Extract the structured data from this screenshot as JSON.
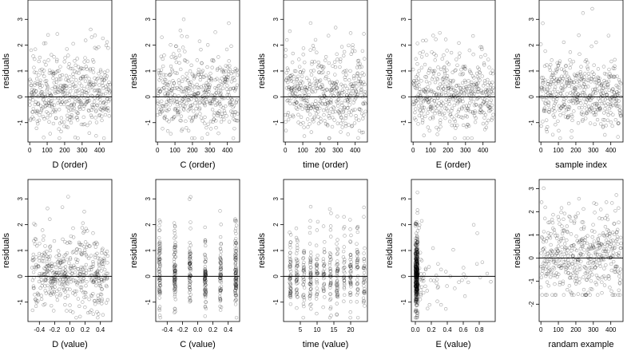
{
  "figure": {
    "background": "#ffffff",
    "point_color": "#000000"
  },
  "chart_data": [
    {
      "type": "scatter",
      "xlabel": "D (order)",
      "ylabel": "residuals",
      "xlim": [
        -10,
        470
      ],
      "ylim": [
        -1.75,
        3.75
      ],
      "xticks": [
        0,
        100,
        200,
        300,
        400
      ],
      "yticks": [
        -1,
        0,
        1,
        2,
        3
      ],
      "reference_line_y": 0,
      "gen": {
        "kind": "order",
        "seed": 11,
        "sd": 0.75
      }
    },
    {
      "type": "scatter",
      "xlabel": "C (order)",
      "ylabel": "residuals",
      "xlim": [
        -10,
        470
      ],
      "ylim": [
        -1.75,
        3.75
      ],
      "xticks": [
        0,
        100,
        200,
        300,
        400
      ],
      "yticks": [
        -1,
        0,
        1,
        2,
        3
      ],
      "reference_line_y": 0,
      "gen": {
        "kind": "order",
        "seed": 23,
        "sd": 0.75
      }
    },
    {
      "type": "scatter",
      "xlabel": "time (order)",
      "ylabel": "residuals",
      "xlim": [
        -10,
        470
      ],
      "ylim": [
        -1.75,
        3.75
      ],
      "xticks": [
        0,
        100,
        200,
        300,
        400
      ],
      "yticks": [
        -1,
        0,
        1,
        2,
        3
      ],
      "reference_line_y": 0,
      "gen": {
        "kind": "order",
        "seed": 37,
        "sd": 0.75
      }
    },
    {
      "type": "scatter",
      "xlabel": "E (order)",
      "ylabel": "residuals",
      "xlim": [
        -10,
        470
      ],
      "ylim": [
        -1.75,
        3.75
      ],
      "xticks": [
        0,
        100,
        200,
        300,
        400
      ],
      "yticks": [
        -1,
        0,
        1,
        2,
        3
      ],
      "reference_line_y": 0,
      "gen": {
        "kind": "order",
        "seed": 41,
        "sd": 0.75
      }
    },
    {
      "type": "scatter",
      "xlabel": "sample index",
      "ylabel": "residuals",
      "xlim": [
        -10,
        470
      ],
      "ylim": [
        -1.75,
        3.75
      ],
      "xticks": [
        0,
        100,
        200,
        300,
        400
      ],
      "yticks": [
        -1,
        0,
        1,
        2,
        3
      ],
      "reference_line_y": 0,
      "gen": {
        "kind": "order",
        "seed": 53,
        "sd": 0.75
      }
    },
    {
      "type": "scatter",
      "xlabel": "D (value)",
      "ylabel": "residuals",
      "xlim": [
        -0.55,
        0.55
      ],
      "ylim": [
        -1.75,
        3.75
      ],
      "xticks": [
        -0.4,
        -0.2,
        0,
        0.2,
        0.4
      ],
      "xtick_labels": [
        "-0.4",
        "-0.2",
        "0.0",
        "0.2",
        "0.4"
      ],
      "yticks": [
        -1,
        0,
        1,
        2,
        3
      ],
      "reference_line_y": 0,
      "gen": {
        "kind": "uniform",
        "seed": 61,
        "sd": 0.75,
        "range": [
          -0.5,
          0.5
        ]
      }
    },
    {
      "type": "scatter",
      "xlabel": "C (value)",
      "ylabel": "residuals",
      "xlim": [
        -0.55,
        0.55
      ],
      "ylim": [
        -1.75,
        3.75
      ],
      "xticks": [
        -0.4,
        -0.2,
        0,
        0.2,
        0.4
      ],
      "xtick_labels": [
        "-0.4",
        "-0.2",
        "0.0",
        "0.2",
        "0.4"
      ],
      "yticks": [
        -1,
        0,
        1,
        2,
        3
      ],
      "reference_line_y": 0,
      "gen": {
        "kind": "levels",
        "seed": 71,
        "sd": 0.75,
        "levels": [
          -0.5,
          -0.3,
          -0.1,
          0.1,
          0.3,
          0.5
        ]
      }
    },
    {
      "type": "scatter",
      "xlabel": "time (value)",
      "ylabel": "residuals",
      "xlim": [
        0,
        25
      ],
      "ylim": [
        -1.75,
        3.75
      ],
      "xticks": [
        5,
        10,
        15,
        20
      ],
      "yticks": [
        -1,
        0,
        1,
        2,
        3
      ],
      "reference_line_y": 0,
      "gen": {
        "kind": "levels",
        "seed": 83,
        "sd": 0.75,
        "levels": [
          2,
          4,
          6,
          8,
          10,
          12,
          14,
          16,
          18,
          20,
          22,
          24
        ]
      }
    },
    {
      "type": "scatter",
      "xlabel": "E (value)",
      "ylabel": "residuals",
      "xlim": [
        -0.05,
        1.0
      ],
      "ylim": [
        -1.75,
        3.75
      ],
      "xticks": [
        0,
        0.2,
        0.4,
        0.6,
        0.8
      ],
      "xtick_labels": [
        "0.0",
        "0.2",
        "0.4",
        "0.6",
        "0.8"
      ],
      "yticks": [
        -1,
        0,
        1,
        2,
        3
      ],
      "reference_line_y": 0,
      "gen": {
        "kind": "skewed",
        "seed": 97,
        "sd": 0.75
      }
    },
    {
      "type": "scatter",
      "xlabel": "randam example",
      "ylabel": "residuals",
      "xlim": [
        -10,
        470
      ],
      "ylim": [
        -2.75,
        3.4
      ],
      "xticks": [
        0,
        100,
        200,
        300,
        400
      ],
      "yticks": [
        -2,
        -1,
        0,
        1,
        2,
        3
      ],
      "reference_line_y": 0,
      "gen": {
        "kind": "order",
        "seed": 101,
        "sd": 1.0
      }
    }
  ]
}
